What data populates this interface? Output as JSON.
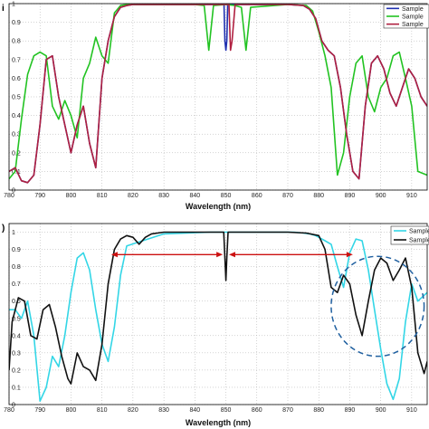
{
  "chart_data": [
    {
      "type": "line",
      "panel_label": "",
      "xlabel": "Wavelength (nm)",
      "ylabel": "",
      "xlim": [
        780,
        915
      ],
      "ylim": [
        0,
        1
      ],
      "xticks": [
        780,
        790,
        800,
        810,
        820,
        830,
        840,
        850,
        860,
        870,
        880,
        890,
        900,
        910
      ],
      "yticks": [
        0,
        0.1,
        0.2,
        0.3,
        0.4,
        0.5,
        0.6,
        0.7,
        0.8,
        0.9,
        1
      ],
      "ytick_labels": [
        "0",
        "0.1",
        "0.2",
        "0.3",
        "0.4",
        "0.5",
        "0.6",
        "0.7",
        "0.8",
        "0.9",
        "1"
      ],
      "grid": true,
      "legend_position": "top-right",
      "series": [
        {
          "name": "Sample",
          "color": "#1f2fb0",
          "x": [
            780,
            782,
            784,
            786,
            788,
            790,
            792,
            794,
            796,
            798,
            800,
            802,
            804,
            806,
            808,
            810,
            812,
            814,
            816,
            818,
            820,
            830,
            840,
            849.4,
            849.7,
            850,
            850.3,
            850.6,
            860,
            870,
            875,
            877,
            879,
            881,
            883,
            885,
            887,
            889,
            891,
            893,
            895,
            897,
            899,
            901,
            903,
            905,
            907,
            909,
            911,
            913,
            915
          ],
          "y": [
            0.1,
            0.12,
            0.05,
            0.04,
            0.08,
            0.35,
            0.7,
            0.72,
            0.5,
            0.35,
            0.2,
            0.35,
            0.45,
            0.25,
            0.12,
            0.6,
            0.8,
            0.93,
            0.98,
            0.99,
            0.995,
            0.995,
            0.995,
            0.995,
            0.8,
            0.75,
            0.8,
            0.995,
            0.995,
            0.995,
            0.99,
            0.97,
            0.92,
            0.8,
            0.75,
            0.72,
            0.55,
            0.3,
            0.1,
            0.06,
            0.45,
            0.68,
            0.72,
            0.65,
            0.52,
            0.45,
            0.55,
            0.65,
            0.6,
            0.5,
            0.45
          ]
        },
        {
          "name": "Sample",
          "color": "#22c322",
          "x": [
            780,
            782,
            784,
            786,
            788,
            790,
            792,
            794,
            796,
            798,
            800,
            802,
            804,
            806,
            808,
            810,
            812,
            814,
            816,
            818,
            830,
            840,
            843,
            844.5,
            846,
            850,
            853,
            855,
            856.5,
            858,
            870,
            876,
            878,
            880,
            882,
            884,
            886,
            888,
            890,
            892,
            894,
            896,
            898,
            900,
            902,
            904,
            906,
            908,
            910,
            912,
            915
          ],
          "y": [
            0.06,
            0.1,
            0.38,
            0.62,
            0.72,
            0.74,
            0.72,
            0.45,
            0.38,
            0.48,
            0.4,
            0.28,
            0.6,
            0.68,
            0.82,
            0.72,
            0.68,
            0.95,
            0.99,
            0.995,
            0.995,
            0.995,
            0.99,
            0.75,
            0.99,
            0.995,
            0.99,
            0.98,
            0.75,
            0.98,
            0.995,
            0.99,
            0.96,
            0.85,
            0.72,
            0.55,
            0.08,
            0.2,
            0.5,
            0.68,
            0.72,
            0.5,
            0.42,
            0.55,
            0.6,
            0.72,
            0.74,
            0.6,
            0.45,
            0.1,
            0.08
          ]
        },
        {
          "name": "Sample",
          "color": "#b02040",
          "x": [
            780,
            782,
            784,
            786,
            788,
            790,
            792,
            794,
            796,
            798,
            800,
            802,
            804,
            806,
            808,
            810,
            812,
            814,
            816,
            818,
            820,
            830,
            840,
            850,
            851,
            851.5,
            852,
            853,
            860,
            870,
            875,
            877,
            879,
            881,
            883,
            885,
            887,
            889,
            891,
            893,
            895,
            897,
            899,
            901,
            903,
            905,
            907,
            909,
            911,
            913,
            915
          ],
          "y": [
            0.1,
            0.12,
            0.05,
            0.04,
            0.08,
            0.35,
            0.7,
            0.72,
            0.5,
            0.35,
            0.2,
            0.35,
            0.45,
            0.25,
            0.12,
            0.6,
            0.8,
            0.93,
            0.98,
            0.99,
            0.995,
            0.995,
            0.995,
            0.995,
            0.995,
            0.75,
            0.8,
            0.995,
            0.995,
            0.995,
            0.99,
            0.97,
            0.92,
            0.8,
            0.75,
            0.72,
            0.55,
            0.3,
            0.1,
            0.06,
            0.45,
            0.68,
            0.72,
            0.65,
            0.52,
            0.45,
            0.55,
            0.65,
            0.6,
            0.5,
            0.45
          ]
        }
      ]
    },
    {
      "type": "line",
      "panel_label": "",
      "xlabel": "Wavelength (nm)",
      "ylabel": "",
      "xlim": [
        780,
        915
      ],
      "ylim": [
        0,
        1.05
      ],
      "xticks": [
        780,
        790,
        800,
        810,
        820,
        830,
        840,
        850,
        860,
        870,
        880,
        890,
        900,
        910
      ],
      "yticks": [
        0,
        0.1,
        0.2,
        0.3,
        0.4,
        0.5,
        0.6,
        0.7,
        0.8,
        0.9,
        1
      ],
      "ytick_labels": [
        "0",
        "0.1",
        "0.2",
        "0.3",
        "0.4",
        "0.5",
        "0.6",
        "0.7",
        "0.8",
        "0.9",
        "1"
      ],
      "grid": true,
      "legend_position": "top-right",
      "annotations": [
        {
          "type": "double-arrow",
          "color": "#cc1111",
          "x1": 813,
          "x2": 849,
          "y": 0.87
        },
        {
          "type": "double-arrow",
          "color": "#cc1111",
          "x1": 851,
          "x2": 891,
          "y": 0.87
        },
        {
          "type": "dashed-ellipse",
          "color": "#2060a0",
          "cx": 899,
          "cy": 0.57,
          "rx": 15,
          "ry": 0.29
        }
      ],
      "series": [
        {
          "name": "Sample",
          "color": "#33d6e6",
          "x": [
            780,
            782,
            784,
            786,
            788,
            790,
            792,
            794,
            796,
            798,
            800,
            802,
            804,
            806,
            808,
            810,
            812,
            814,
            816,
            818,
            830,
            845,
            850,
            855,
            865,
            872,
            875,
            877,
            879,
            882,
            884,
            886,
            888,
            890,
            892,
            894,
            896,
            898,
            900,
            902,
            904,
            906,
            908,
            910,
            912,
            915
          ],
          "y": [
            0.55,
            0.55,
            0.5,
            0.6,
            0.4,
            0.02,
            0.1,
            0.28,
            0.22,
            0.4,
            0.65,
            0.85,
            0.88,
            0.78,
            0.55,
            0.35,
            0.25,
            0.45,
            0.75,
            0.92,
            0.99,
            1.0,
            1.0,
            1.0,
            1.0,
            1.0,
            0.995,
            0.99,
            0.98,
            0.95,
            0.93,
            0.8,
            0.68,
            0.88,
            0.96,
            0.95,
            0.78,
            0.55,
            0.32,
            0.12,
            0.03,
            0.15,
            0.48,
            0.7,
            0.6,
            0.65
          ]
        },
        {
          "name": "Sample",
          "color": "#111111",
          "x": [
            780,
            781,
            783,
            785,
            787,
            789,
            791,
            793,
            795,
            797,
            799,
            800,
            802,
            804,
            806,
            808,
            810,
            812,
            814,
            816,
            818,
            820,
            822,
            824,
            826,
            830,
            840,
            849.3,
            849.7,
            850,
            850.3,
            850.7,
            860,
            870,
            876,
            880,
            882,
            884,
            886,
            888,
            890,
            892,
            894,
            896,
            898,
            900,
            902,
            904,
            906,
            908,
            910,
            912,
            914,
            915
          ],
          "y": [
            0.2,
            0.48,
            0.62,
            0.6,
            0.4,
            0.38,
            0.55,
            0.58,
            0.45,
            0.28,
            0.15,
            0.12,
            0.3,
            0.22,
            0.2,
            0.14,
            0.35,
            0.7,
            0.9,
            0.96,
            0.98,
            0.97,
            0.93,
            0.97,
            0.99,
            1.0,
            1.0,
            1.0,
            0.85,
            0.72,
            0.85,
            1.0,
            1.0,
            1.0,
            0.995,
            0.98,
            0.9,
            0.68,
            0.65,
            0.75,
            0.7,
            0.52,
            0.4,
            0.6,
            0.78,
            0.85,
            0.82,
            0.72,
            0.78,
            0.85,
            0.68,
            0.3,
            0.18,
            0.25
          ]
        }
      ]
    }
  ]
}
